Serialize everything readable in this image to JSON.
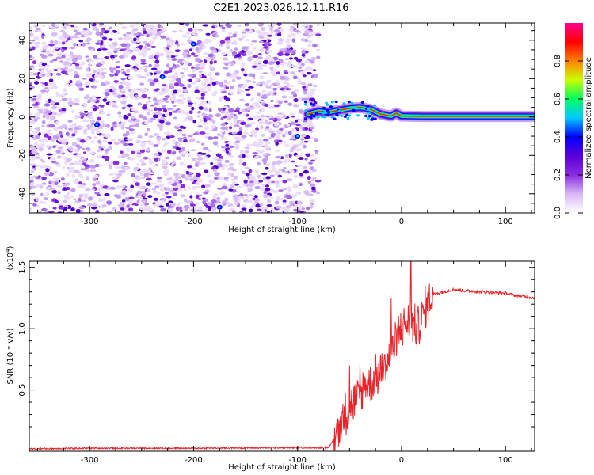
{
  "title": "C2E1.2023.026.12.11.R16",
  "chart_data": [
    {
      "type": "heatmap",
      "title": "C2E1.2023.026.12.11.R16",
      "xlabel": "Height of straight line (km)",
      "ylabel": "Frequency (Hz)",
      "xlim": [
        -358,
        128
      ],
      "ylim": [
        -50,
        49
      ],
      "xticks": [
        "-300",
        "-200",
        "-100",
        "0",
        "100"
      ],
      "yticks": [
        "-40",
        "-20",
        "0",
        "20",
        "40"
      ],
      "colorbar": {
        "label": "Normalized spectral amplitude",
        "range": [
          0,
          1
        ],
        "ticks": [
          "0.0",
          "0.2",
          "0.4",
          "0.6",
          "0.8"
        ],
        "colors": [
          "#ffffff",
          "#d8b8f5",
          "#8a2be2",
          "#5a00d8",
          "#0000ff",
          "#00c8ff",
          "#00ff60",
          "#c8ff00",
          "#ff8000",
          "#ff0000",
          "#ff0090"
        ]
      },
      "noise_region_x": [
        -358,
        -80
      ],
      "signal_track": [
        {
          "x": -90,
          "y": 1.5
        },
        {
          "x": -80,
          "y": 3
        },
        {
          "x": -70,
          "y": 2.5
        },
        {
          "x": -60,
          "y": 3.5
        },
        {
          "x": -50,
          "y": 4.5
        },
        {
          "x": -40,
          "y": 5
        },
        {
          "x": -30,
          "y": 4
        },
        {
          "x": -20,
          "y": 1.5
        },
        {
          "x": -10,
          "y": 0.5
        },
        {
          "x": -5,
          "y": 2
        },
        {
          "x": 0,
          "y": 0.5
        },
        {
          "x": 20,
          "y": 0.3
        },
        {
          "x": 60,
          "y": 0.3
        },
        {
          "x": 100,
          "y": 0.3
        },
        {
          "x": 128,
          "y": 0.3
        }
      ],
      "hotspots": [
        {
          "x": -230,
          "y": 21
        },
        {
          "x": -293,
          "y": -4
        },
        {
          "x": -175,
          "y": -47
        },
        {
          "x": -100,
          "y": -10
        },
        {
          "x": -200,
          "y": 38
        }
      ]
    },
    {
      "type": "line",
      "xlabel": "Height of straight line (km)",
      "ylabel": "SNR (10 * v/v)",
      "y_multiplier": "(x10",
      "y_multiplier_exp": "4",
      "y_multiplier_close": ")",
      "xlim": [
        -358,
        128
      ],
      "ylim": [
        0,
        1.55
      ],
      "xticks": [
        "-300",
        "-200",
        "-100",
        "0",
        "100"
      ],
      "yticks": [
        "0.5",
        "1.0",
        "1.5"
      ],
      "series": [
        {
          "color": "#e8242a",
          "x": [
            -358,
            -300,
            -200,
            -100,
            -70,
            -62,
            -55,
            -50,
            -45,
            -40,
            -35,
            -30,
            -25,
            -20,
            -15,
            -10,
            -5,
            0,
            5,
            10,
            15,
            20,
            25,
            30,
            40,
            50,
            60,
            80,
            100,
            110,
            120,
            128
          ],
          "y": [
            0.02,
            0.025,
            0.025,
            0.03,
            0.03,
            0.15,
            0.3,
            0.35,
            0.4,
            0.45,
            0.55,
            0.55,
            0.6,
            0.65,
            0.7,
            0.8,
            0.9,
            1.0,
            1.05,
            1.05,
            1.0,
            1.1,
            1.2,
            1.28,
            1.3,
            1.32,
            1.31,
            1.3,
            1.29,
            1.27,
            1.26,
            1.25
          ]
        }
      ],
      "spikes": [
        {
          "x": 9,
          "y": 1.55
        },
        {
          "x": -10,
          "y": 1.25
        },
        {
          "x": -3,
          "y": 1.1
        },
        {
          "x": -50,
          "y": 0.7
        },
        {
          "x": -40,
          "y": 0.72
        }
      ]
    }
  ]
}
